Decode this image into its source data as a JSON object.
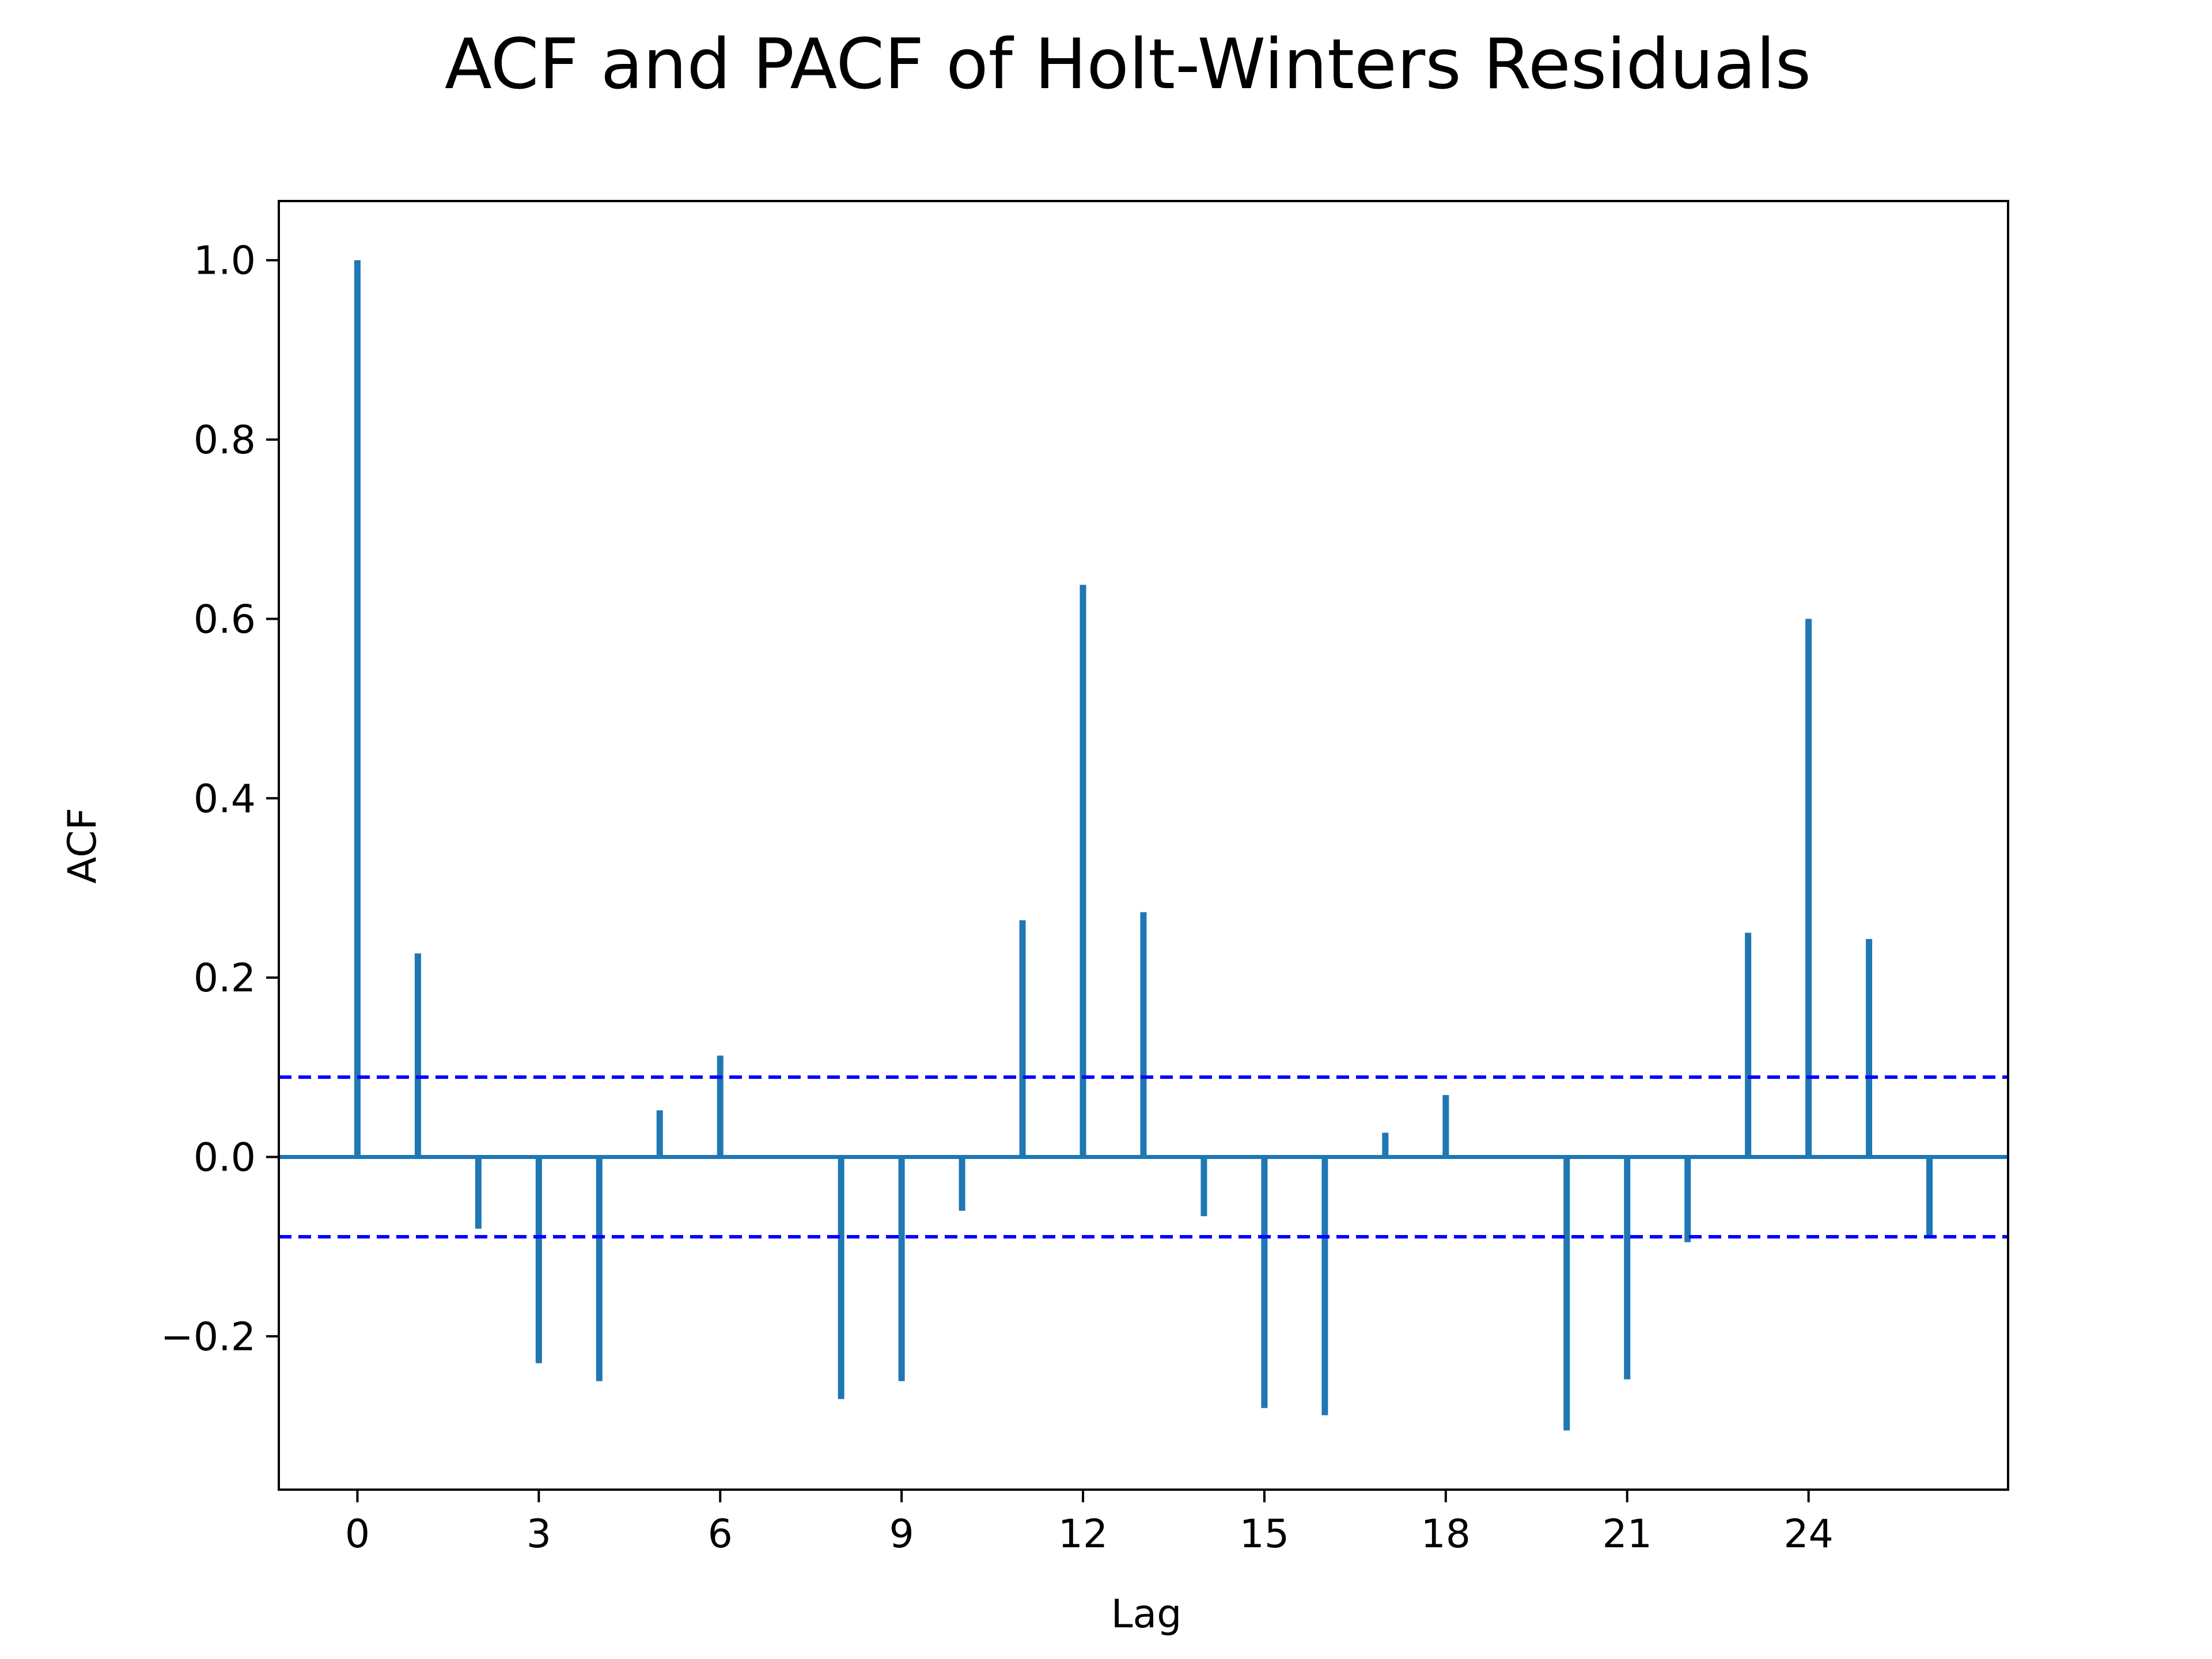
{
  "chart_data": {
    "type": "bar",
    "title": "ACF and PACF of Holt-Winters Residuals",
    "xlabel": "Lag",
    "ylabel": "ACF",
    "x": [
      0,
      1,
      2,
      3,
      4,
      5,
      6,
      7,
      8,
      9,
      10,
      11,
      12,
      13,
      14,
      15,
      16,
      17,
      18,
      19,
      20,
      21,
      22,
      23,
      24,
      25,
      26
    ],
    "values": [
      1.0,
      0.227,
      -0.08,
      -0.23,
      -0.25,
      0.052,
      0.113,
      0.0,
      -0.27,
      -0.25,
      -0.06,
      0.264,
      0.638,
      0.273,
      -0.066,
      -0.28,
      -0.288,
      0.027,
      0.069,
      0.0,
      -0.305,
      -0.248,
      -0.095,
      0.25,
      0.6,
      0.243,
      -0.09
    ],
    "confidence_band": 0.089,
    "xlim": [
      -1.3,
      27.3
    ],
    "ylim": [
      -0.371,
      1.066
    ],
    "x_ticks": [
      0,
      3,
      6,
      9,
      12,
      15,
      18,
      21,
      24
    ],
    "x_tick_labels": [
      "0",
      "3",
      "6",
      "9",
      "12",
      "15",
      "18",
      "21",
      "24"
    ],
    "y_ticks": [
      -0.2,
      0.0,
      0.2,
      0.4,
      0.6,
      0.8,
      1.0
    ],
    "y_tick_labels": [
      "−0.2",
      "0.0",
      "0.2",
      "0.4",
      "0.6",
      "0.8",
      "1.0"
    ],
    "grid": false,
    "colors": {
      "stem": "#1f77b4",
      "baseline": "#1f77b4",
      "confidence": "#0000ff",
      "frame": "#000000"
    }
  }
}
